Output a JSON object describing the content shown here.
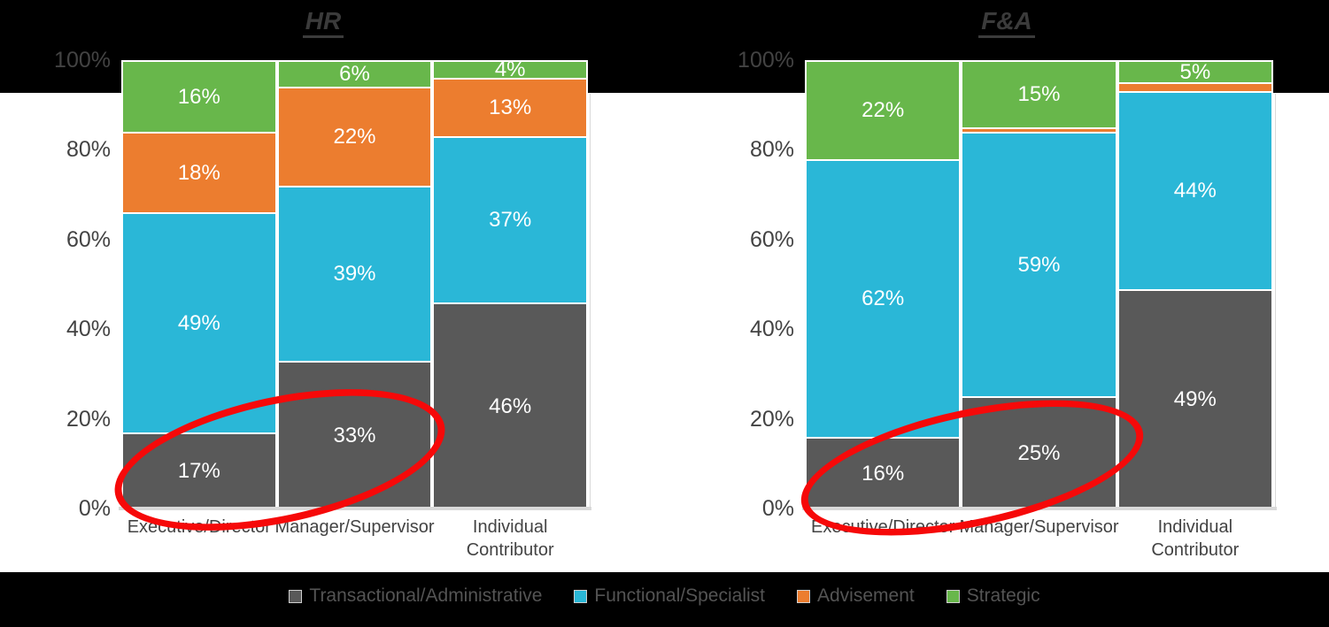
{
  "colors": {
    "background": "#000000",
    "panel": "#ffffff",
    "axis_text": "#434343",
    "title_text": "#3b3b3b",
    "legend_text": "#545454",
    "axis_line": "#d9d9d9",
    "segment_border": "#ffffff",
    "annotation_red": "#f60909"
  },
  "chart_data": [
    {
      "type": "bar",
      "stacked": true,
      "percent_stacked": true,
      "title": "HR",
      "categories": [
        "Executive/Director",
        "Manager/Supervisor",
        "Individual\nContributor"
      ],
      "series": [
        {
          "name": "Transactional/Administrative",
          "color": "#595959",
          "values": [
            17,
            33,
            46
          ]
        },
        {
          "name": "Functional/Specialist",
          "color": "#2ab7d7",
          "values": [
            49,
            39,
            37
          ]
        },
        {
          "name": "Advisement",
          "color": "#ec7d2f",
          "values": [
            18,
            22,
            13
          ]
        },
        {
          "name": "Strategic",
          "color": "#68b74b",
          "values": [
            16,
            6,
            4
          ]
        }
      ],
      "y_ticks": [
        "100%",
        "80%",
        "60%",
        "40%",
        "20%",
        "0%"
      ],
      "ylim": [
        0,
        100
      ],
      "value_suffix": "%",
      "label_min_value": 4,
      "grid": false,
      "annotation": {
        "shape": "red-ellipse",
        "color": "#f60909",
        "highlights": "Transactional/Administrative for Executive/Director (17%) and Manager/Supervisor (33%)"
      }
    },
    {
      "type": "bar",
      "stacked": true,
      "percent_stacked": true,
      "title": "F&A",
      "categories": [
        "Executive/Director",
        "Manager/Supervisor",
        "Individual\nContributor"
      ],
      "series": [
        {
          "name": "Transactional/Administrative",
          "color": "#595959",
          "values": [
            16,
            25,
            49
          ]
        },
        {
          "name": "Functional/Specialist",
          "color": "#2ab7d7",
          "values": [
            62,
            59,
            44
          ]
        },
        {
          "name": "Advisement",
          "color": "#ec7d2f",
          "values": [
            0,
            1,
            2
          ]
        },
        {
          "name": "Strategic",
          "color": "#68b74b",
          "values": [
            22,
            15,
            5
          ]
        }
      ],
      "y_ticks": [
        "100%",
        "80%",
        "60%",
        "40%",
        "20%",
        "0%"
      ],
      "ylim": [
        0,
        100
      ],
      "value_suffix": "%",
      "label_min_value": 4,
      "grid": false,
      "annotation": {
        "shape": "red-ellipse",
        "color": "#f60909",
        "highlights": "Transactional/Administrative for Executive/Director (16%) and Manager/Supervisor (25%)"
      }
    }
  ],
  "legend": {
    "items": [
      {
        "label": "Transactional/Administrative",
        "color": "#595959"
      },
      {
        "label": "Functional/Specialist",
        "color": "#2ab7d7"
      },
      {
        "label": "Advisement",
        "color": "#ec7d2f"
      },
      {
        "label": "Strategic",
        "color": "#68b74b"
      }
    ]
  }
}
